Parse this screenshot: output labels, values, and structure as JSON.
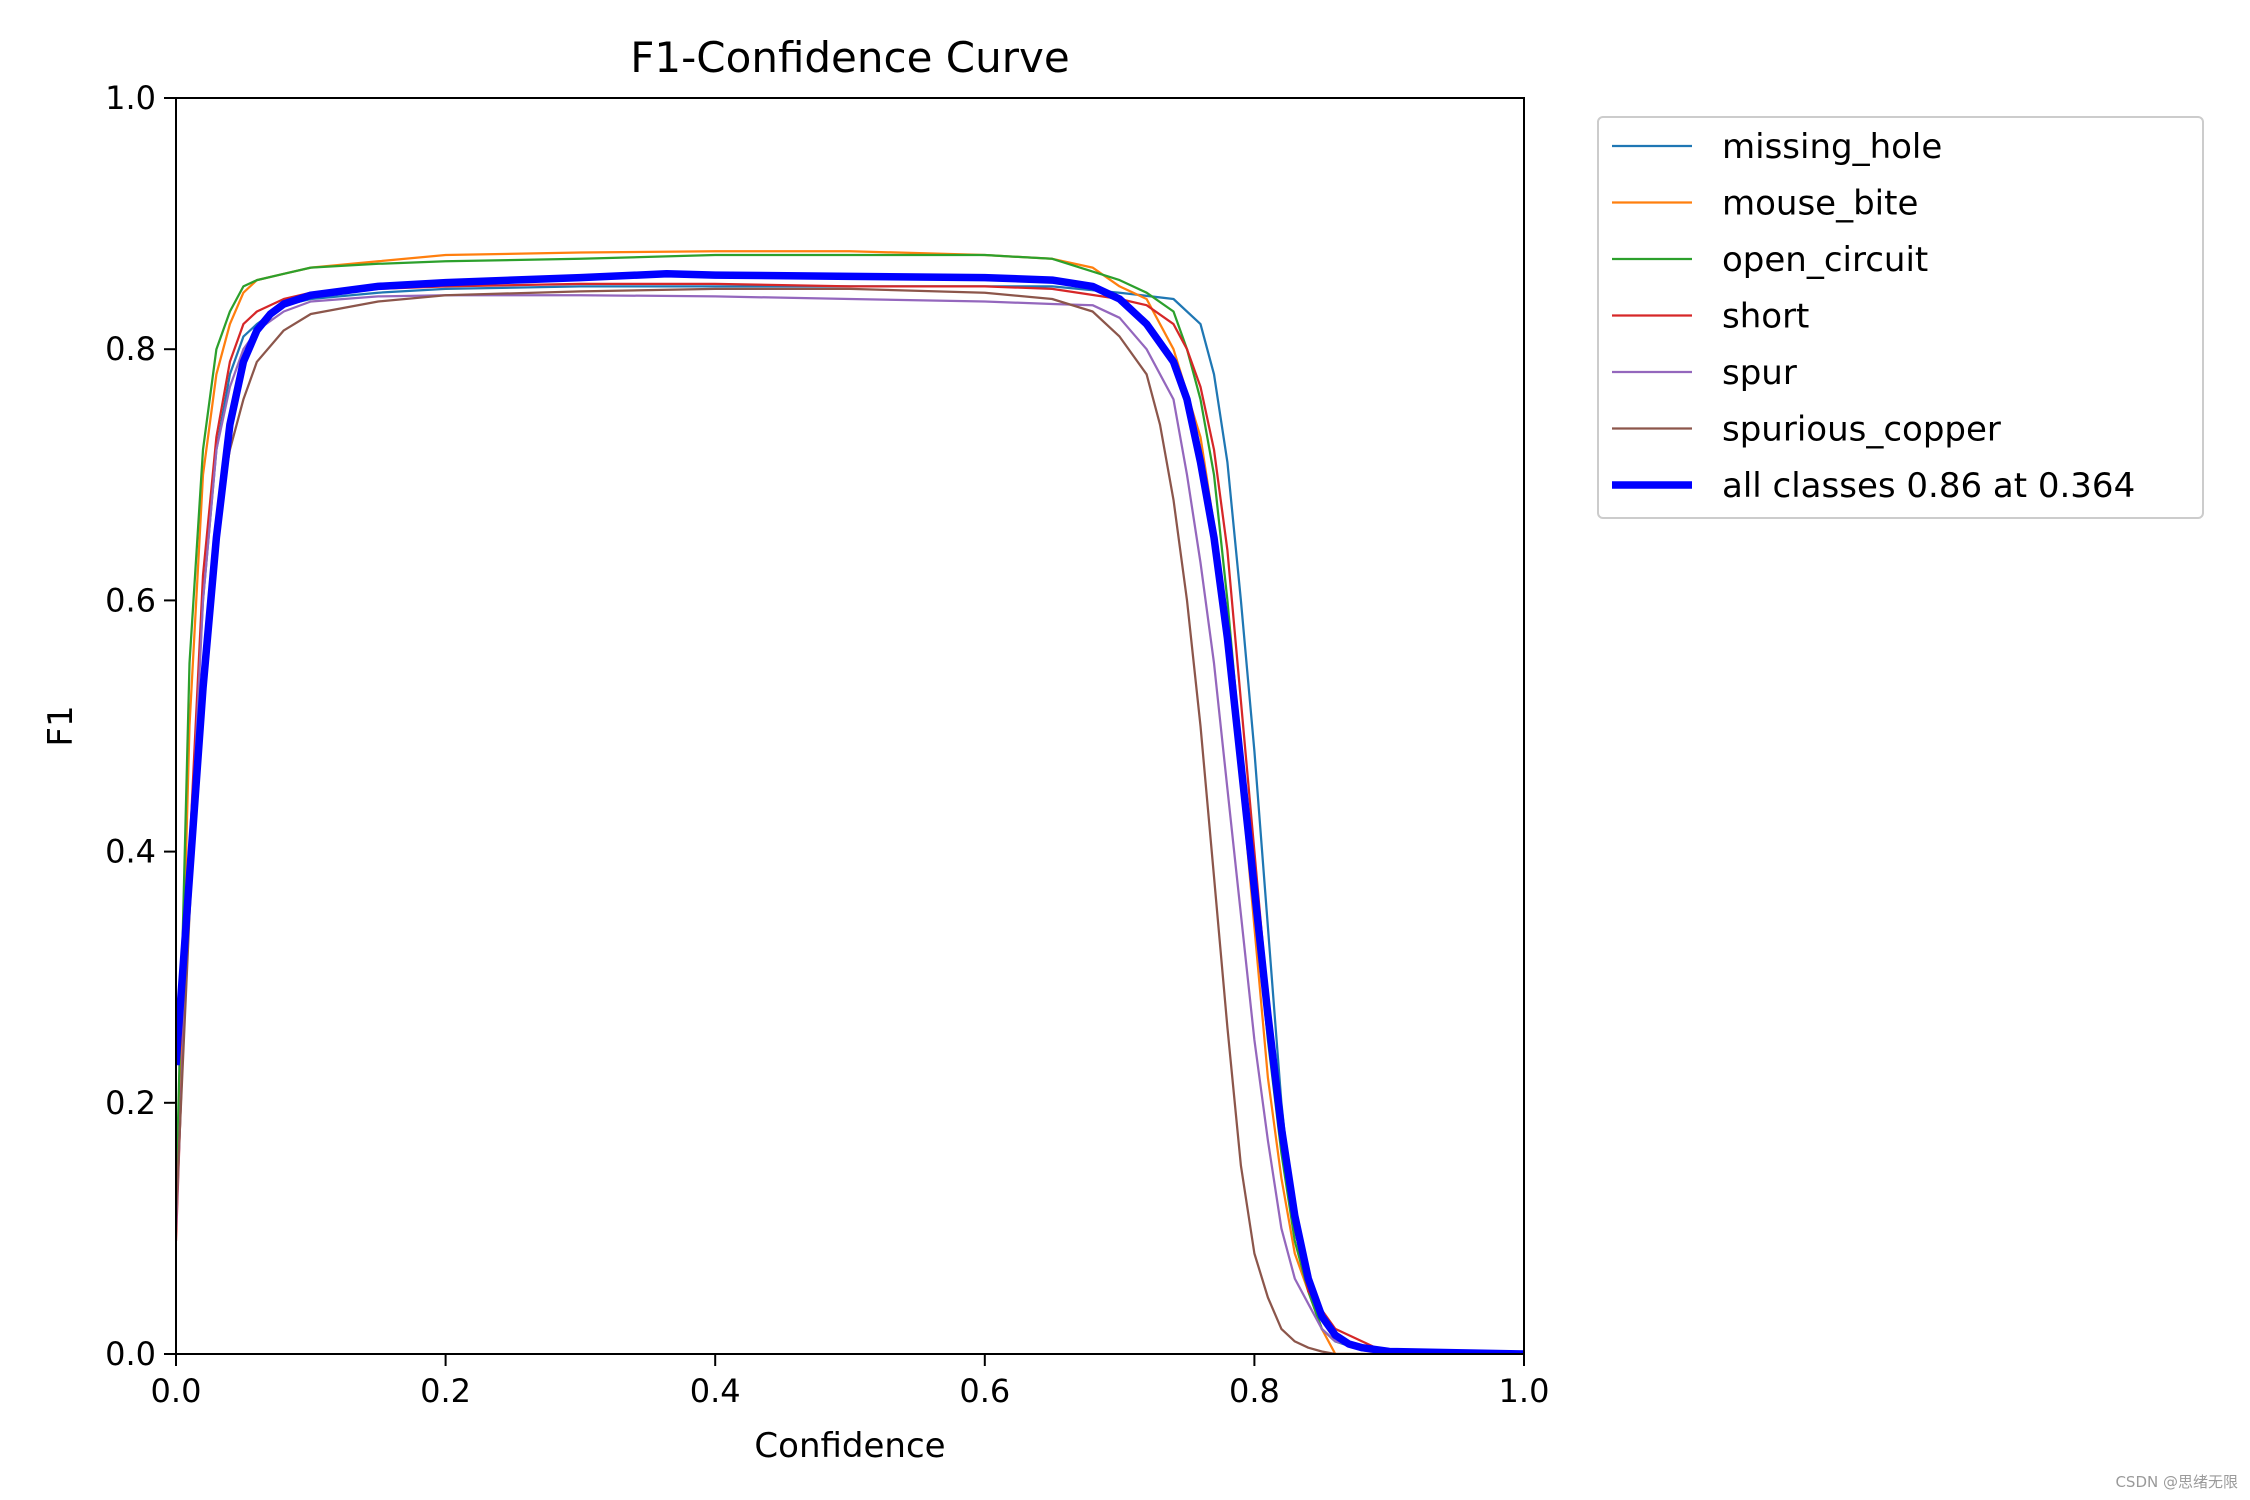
{
  "chart_data": {
    "type": "line",
    "title": "F1-Confidence Curve",
    "xlabel": "Confidence",
    "ylabel": "F1",
    "xlim": [
      0.0,
      1.0
    ],
    "ylim": [
      0.0,
      1.0
    ],
    "xticks": [
      "0.0",
      "0.2",
      "0.4",
      "0.6",
      "0.8",
      "1.0"
    ],
    "yticks": [
      "0.0",
      "0.2",
      "0.4",
      "0.6",
      "0.8",
      "1.0"
    ],
    "grid": false,
    "legend_position": "outside-right",
    "series": [
      {
        "name": "missing_hole",
        "color": "#1f77b4",
        "width": 1.5,
        "x": [
          0.0,
          0.01,
          0.02,
          0.03,
          0.04,
          0.05,
          0.06,
          0.08,
          0.1,
          0.15,
          0.2,
          0.3,
          0.4,
          0.5,
          0.6,
          0.65,
          0.7,
          0.74,
          0.76,
          0.77,
          0.78,
          0.79,
          0.8,
          0.81,
          0.82,
          0.83,
          0.84,
          0.85,
          0.86,
          0.88,
          0.9,
          0.95,
          1.0
        ],
        "y": [
          0.14,
          0.4,
          0.6,
          0.72,
          0.78,
          0.81,
          0.82,
          0.835,
          0.84,
          0.845,
          0.848,
          0.85,
          0.85,
          0.85,
          0.85,
          0.85,
          0.845,
          0.84,
          0.82,
          0.78,
          0.71,
          0.6,
          0.48,
          0.34,
          0.2,
          0.1,
          0.05,
          0.02,
          0.01,
          0.003,
          0.001,
          0.0,
          0.0
        ]
      },
      {
        "name": "mouse_bite",
        "color": "#ff7f0e",
        "width": 1.5,
        "x": [
          0.0,
          0.01,
          0.02,
          0.03,
          0.04,
          0.05,
          0.06,
          0.08,
          0.1,
          0.15,
          0.2,
          0.3,
          0.4,
          0.5,
          0.6,
          0.65,
          0.68,
          0.7,
          0.72,
          0.74,
          0.76,
          0.77,
          0.78,
          0.79,
          0.8,
          0.81,
          0.82,
          0.83,
          0.84,
          0.85,
          0.86,
          0.9,
          1.0
        ],
        "y": [
          0.1,
          0.5,
          0.7,
          0.78,
          0.82,
          0.845,
          0.855,
          0.86,
          0.865,
          0.87,
          0.875,
          0.877,
          0.878,
          0.878,
          0.875,
          0.872,
          0.865,
          0.85,
          0.84,
          0.8,
          0.73,
          0.66,
          0.57,
          0.46,
          0.34,
          0.22,
          0.14,
          0.08,
          0.05,
          0.02,
          0.0,
          0.0,
          0.0
        ]
      },
      {
        "name": "open_circuit",
        "color": "#2ca02c",
        "width": 1.5,
        "x": [
          0.0,
          0.01,
          0.02,
          0.03,
          0.04,
          0.05,
          0.06,
          0.08,
          0.1,
          0.15,
          0.2,
          0.3,
          0.4,
          0.5,
          0.6,
          0.65,
          0.7,
          0.72,
          0.74,
          0.75,
          0.76,
          0.77,
          0.78,
          0.79,
          0.8,
          0.81,
          0.82,
          0.83,
          0.84,
          0.85,
          0.86,
          0.9,
          1.0
        ],
        "y": [
          0.12,
          0.55,
          0.72,
          0.8,
          0.83,
          0.85,
          0.855,
          0.86,
          0.865,
          0.868,
          0.87,
          0.872,
          0.875,
          0.875,
          0.875,
          0.872,
          0.855,
          0.845,
          0.83,
          0.8,
          0.76,
          0.7,
          0.6,
          0.48,
          0.36,
          0.25,
          0.16,
          0.09,
          0.05,
          0.02,
          0.01,
          0.0,
          0.0
        ]
      },
      {
        "name": "short",
        "color": "#d62728",
        "width": 1.5,
        "x": [
          0.0,
          0.01,
          0.02,
          0.03,
          0.04,
          0.05,
          0.06,
          0.08,
          0.1,
          0.15,
          0.2,
          0.3,
          0.4,
          0.5,
          0.6,
          0.65,
          0.7,
          0.72,
          0.74,
          0.75,
          0.76,
          0.77,
          0.78,
          0.79,
          0.8,
          0.81,
          0.82,
          0.83,
          0.84,
          0.85,
          0.86,
          0.9,
          1.0
        ],
        "y": [
          0.09,
          0.4,
          0.62,
          0.73,
          0.79,
          0.82,
          0.83,
          0.84,
          0.845,
          0.848,
          0.85,
          0.852,
          0.852,
          0.85,
          0.85,
          0.848,
          0.84,
          0.835,
          0.82,
          0.8,
          0.77,
          0.72,
          0.64,
          0.52,
          0.4,
          0.28,
          0.17,
          0.1,
          0.05,
          0.035,
          0.02,
          0.0,
          0.0
        ]
      },
      {
        "name": "spur",
        "color": "#9467bd",
        "width": 1.5,
        "x": [
          0.0,
          0.01,
          0.02,
          0.03,
          0.04,
          0.05,
          0.06,
          0.08,
          0.1,
          0.15,
          0.2,
          0.3,
          0.4,
          0.5,
          0.6,
          0.65,
          0.68,
          0.7,
          0.72,
          0.74,
          0.75,
          0.76,
          0.77,
          0.78,
          0.79,
          0.8,
          0.81,
          0.82,
          0.83,
          0.84,
          0.85,
          0.86,
          0.9,
          1.0
        ],
        "y": [
          0.1,
          0.38,
          0.6,
          0.72,
          0.77,
          0.8,
          0.815,
          0.83,
          0.838,
          0.842,
          0.843,
          0.843,
          0.842,
          0.84,
          0.838,
          0.836,
          0.835,
          0.825,
          0.8,
          0.76,
          0.7,
          0.63,
          0.55,
          0.45,
          0.35,
          0.25,
          0.17,
          0.1,
          0.06,
          0.04,
          0.02,
          0.01,
          0.0,
          0.0
        ]
      },
      {
        "name": "spurious_copper",
        "color": "#8c564b",
        "width": 1.5,
        "x": [
          0.0,
          0.01,
          0.02,
          0.03,
          0.04,
          0.05,
          0.06,
          0.08,
          0.1,
          0.15,
          0.2,
          0.3,
          0.4,
          0.5,
          0.6,
          0.65,
          0.68,
          0.7,
          0.72,
          0.73,
          0.74,
          0.75,
          0.76,
          0.77,
          0.78,
          0.79,
          0.8,
          0.81,
          0.82,
          0.83,
          0.84,
          0.85,
          0.86,
          0.9,
          1.0
        ],
        "y": [
          0.11,
          0.35,
          0.55,
          0.66,
          0.72,
          0.76,
          0.79,
          0.815,
          0.828,
          0.838,
          0.843,
          0.846,
          0.848,
          0.848,
          0.845,
          0.84,
          0.83,
          0.81,
          0.78,
          0.74,
          0.68,
          0.6,
          0.5,
          0.38,
          0.26,
          0.15,
          0.08,
          0.045,
          0.02,
          0.01,
          0.005,
          0.002,
          0.0,
          0.0,
          0.0
        ]
      },
      {
        "name": "all classes 0.86 at 0.364",
        "color": "#0000ff",
        "width": 5,
        "x": [
          0.0,
          0.01,
          0.02,
          0.03,
          0.04,
          0.05,
          0.06,
          0.07,
          0.08,
          0.1,
          0.15,
          0.2,
          0.3,
          0.364,
          0.4,
          0.5,
          0.6,
          0.65,
          0.68,
          0.7,
          0.72,
          0.74,
          0.75,
          0.76,
          0.77,
          0.78,
          0.79,
          0.8,
          0.81,
          0.82,
          0.83,
          0.84,
          0.85,
          0.86,
          0.87,
          0.88,
          0.9,
          0.95,
          1.0
        ],
        "y": [
          0.23,
          0.38,
          0.53,
          0.65,
          0.74,
          0.79,
          0.815,
          0.828,
          0.836,
          0.843,
          0.85,
          0.853,
          0.857,
          0.86,
          0.859,
          0.858,
          0.857,
          0.855,
          0.85,
          0.84,
          0.82,
          0.79,
          0.76,
          0.71,
          0.65,
          0.57,
          0.47,
          0.37,
          0.27,
          0.18,
          0.11,
          0.06,
          0.03,
          0.015,
          0.008,
          0.005,
          0.002,
          0.001,
          0.0
        ]
      }
    ]
  },
  "watermark": "CSDN @思绪无限"
}
